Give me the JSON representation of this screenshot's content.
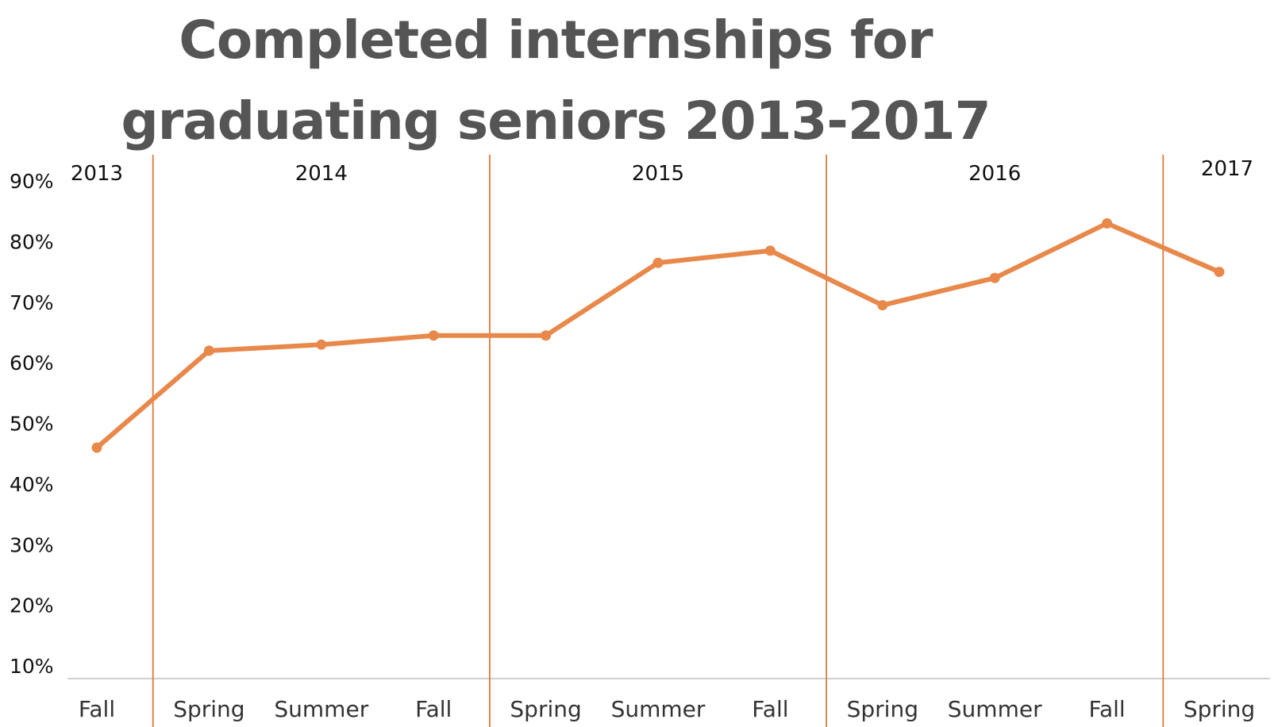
{
  "chart_data": {
    "type": "line",
    "title_lines": [
      "Completed internships for",
      "graduating seniors 2013-2017"
    ],
    "categories": [
      "Fall",
      "Spring",
      "Summer",
      "Fall",
      "Spring",
      "Summer",
      "Fall",
      "Spring",
      "Summer",
      "Fall",
      "Spring"
    ],
    "years": [
      {
        "label": "2013",
        "start": 0,
        "end": 0
      },
      {
        "label": "2014",
        "start": 1,
        "end": 3
      },
      {
        "label": "2015",
        "start": 4,
        "end": 6
      },
      {
        "label": "2016",
        "start": 7,
        "end": 9
      },
      {
        "label": "2017",
        "start": 10,
        "end": 10
      }
    ],
    "series": [
      {
        "values": [
          46,
          62,
          63,
          64.5,
          64.5,
          76.5,
          78.5,
          69.5,
          74,
          83,
          75
        ]
      }
    ],
    "y_ticks": [
      "10%",
      "20%",
      "30%",
      "40%",
      "50%",
      "60%",
      "70%",
      "80%",
      "90%"
    ],
    "ylim": [
      10,
      90
    ],
    "grid": false,
    "line_color": "#E8884A",
    "divider_color": "#E07A3A"
  }
}
